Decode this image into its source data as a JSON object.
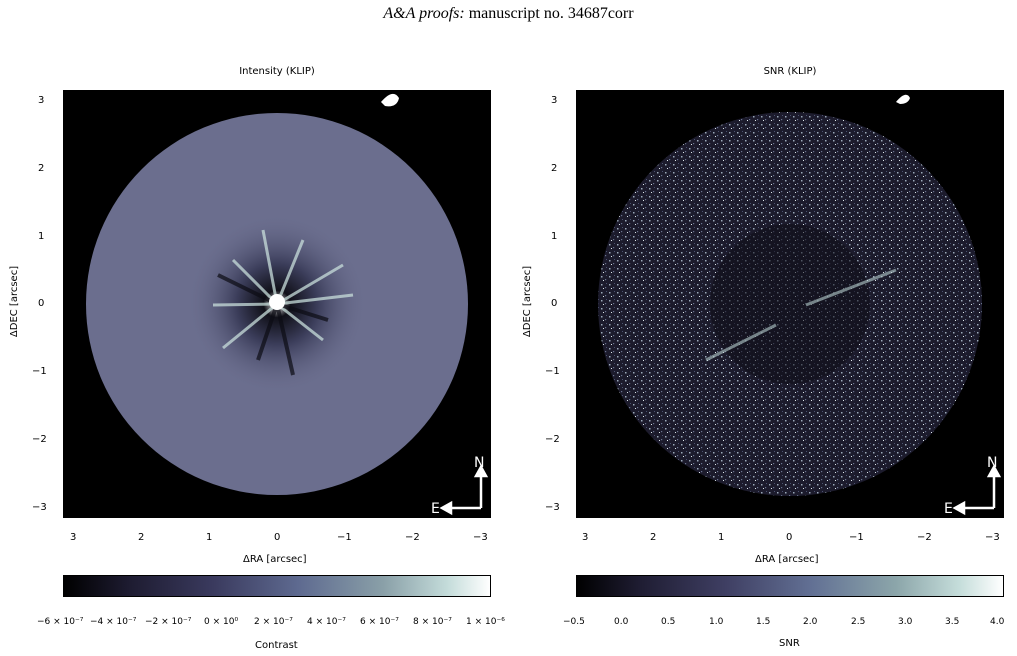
{
  "header": {
    "journal": "A&A proofs:",
    "rest": "manuscript no. 34687corr"
  },
  "panels": [
    {
      "title": "Intensity (KLIP)",
      "xlabel": "ΔRA [arcsec]",
      "ylabel": "ΔDEC [arcsec]",
      "xticks": [
        "3",
        "2",
        "1",
        "0",
        "−1",
        "−2",
        "−3"
      ],
      "yticks": [
        "3",
        "2",
        "1",
        "0",
        "−1",
        "−2",
        "−3"
      ],
      "compass": {
        "north": "N",
        "east": "E"
      },
      "colorbar": {
        "label": "Contrast",
        "ticks": [
          "−6 × 10⁻⁷",
          "−4 × 10⁻⁷",
          "−2 × 10⁻⁷",
          "0 × 10⁰",
          "2 × 10⁻⁷",
          "4 × 10⁻⁷",
          "6 × 10⁻⁷",
          "8 × 10⁻⁷",
          "1 × 10⁻⁶"
        ]
      },
      "disk_color": "#6b6e8e"
    },
    {
      "title": "SNR (KLIP)",
      "xlabel": "ΔRA [arcsec]",
      "ylabel": "ΔDEC [arcsec]",
      "xticks": [
        "3",
        "2",
        "1",
        "0",
        "−1",
        "−2",
        "−3"
      ],
      "yticks": [
        "3",
        "2",
        "1",
        "0",
        "−1",
        "−2",
        "−3"
      ],
      "compass": {
        "north": "N",
        "east": "E"
      },
      "colorbar": {
        "label": "SNR",
        "ticks": [
          "−0.5",
          "0.0",
          "0.5",
          "1.0",
          "1.5",
          "2.0",
          "2.5",
          "3.0",
          "3.5",
          "4.0"
        ]
      },
      "disk_color": "#1c1b2c"
    }
  ]
}
